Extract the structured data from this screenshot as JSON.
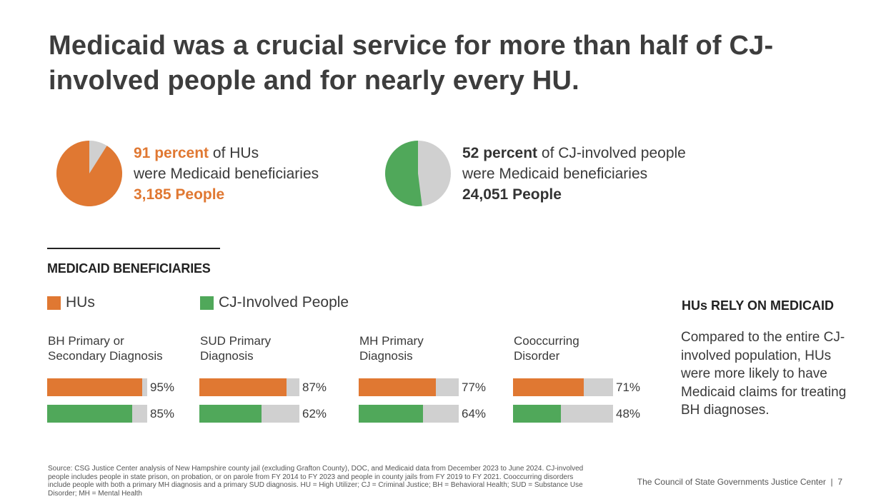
{
  "title": "Medicaid was a crucial service for more than half of CJ-involved people and for nearly every HU.",
  "colors": {
    "orange": "#E07832",
    "green": "#50A85A",
    "gray": "#D0D0D0"
  },
  "stats": [
    {
      "percent_text": "91 percent",
      "rest_text": " of HUs",
      "line2": "were Medicaid beneficiaries",
      "people": "3,185 People",
      "pie_value": 0.91,
      "color": "#E07832"
    },
    {
      "percent_text": "52 percent",
      "rest_text": " of CJ-involved people",
      "line2": "were Medicaid beneficiaries",
      "people": "24,051 People",
      "pie_value": 0.52,
      "color": "#50A85A"
    }
  ],
  "section_title": "MEDICAID BENEFICIARIES",
  "legend": [
    "HUs",
    "CJ-Involved People"
  ],
  "chart_data": {
    "type": "bar",
    "title": "MEDICAID BENEFICIARIES",
    "categories": [
      "BH Primary or Secondary Diagnosis",
      "SUD Primary Diagnosis",
      "MH Primary Diagnosis",
      "Cooccurring Disorder"
    ],
    "category_lines": [
      [
        "BH Primary or",
        "Secondary Diagnosis"
      ],
      [
        "SUD Primary",
        "Diagnosis"
      ],
      [
        "MH Primary",
        "Diagnosis"
      ],
      [
        "Cooccurring",
        "Disorder"
      ]
    ],
    "series": [
      {
        "name": "HUs",
        "values": [
          95,
          87,
          77,
          71
        ],
        "labels": [
          "95%",
          "87%",
          "77%",
          "71%"
        ],
        "color": "#E07832"
      },
      {
        "name": "CJ-Involved People",
        "values": [
          85,
          62,
          64,
          48
        ],
        "labels": [
          "85%",
          "62%",
          "64%",
          "48%"
        ],
        "color": "#50A85A"
      }
    ],
    "ylim": [
      0,
      100
    ]
  },
  "side_panel": {
    "title": "HUs RELY ON MEDICAID",
    "text": "Compared to the entire CJ-involved population, HUs were more likely to have Medicaid claims for treating BH diagnoses."
  },
  "source": "Source: CSG Justice Center analysis of New Hampshire county jail (excluding Grafton County), DOC, and Medicaid data from December 2023 to June 2024. CJ-involved people includes people in state prison, on probation, or on parole from FY 2014 to FY 2023 and people in county jails from FY 2019 to FY 2021. Cooccurring disorders include people with both a primary MH diagnosis and a primary SUD diagnosis. HU = High Utilizer; CJ = Criminal Justice; BH = Behavioral Health; SUD = Substance Use Disorder; MH = Mental Health",
  "footer": "The Council of State Governments Justice Center  |  7"
}
